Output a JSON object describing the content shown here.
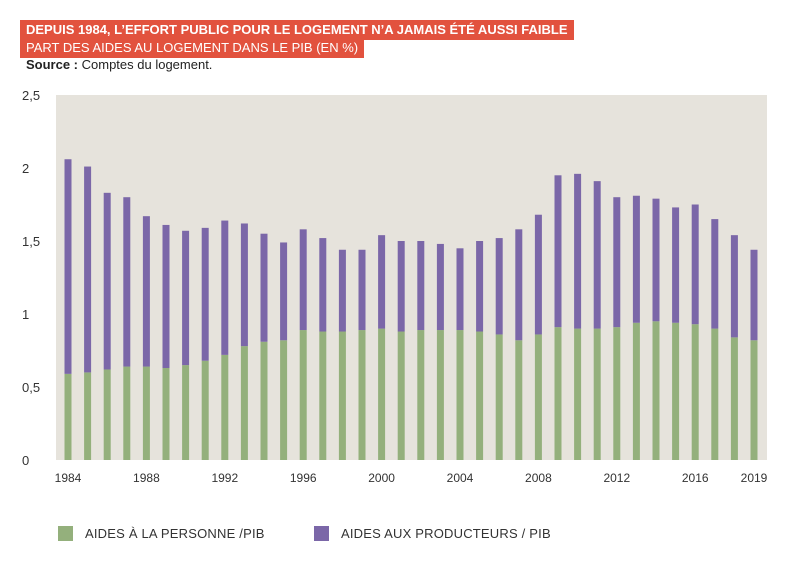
{
  "title": "DEPUIS 1984, L’EFFORT PUBLIC POUR LE LOGEMENT N’A JAMAIS ÉTÉ AUSSI FAIBLE",
  "subtitle": "PART DES AIDES AU LOGEMENT DANS LE PIB (EN %)",
  "source_label": "Source :",
  "source_text": " Comptes du logement.",
  "colors": {
    "series1": "#94b07c",
    "series2": "#7b67a8",
    "plot_bg": "#e6e3dc",
    "title_bg": "#e2523e"
  },
  "chart_data": {
    "type": "bar",
    "stacked": true,
    "categories": [
      1984,
      1985,
      1986,
      1987,
      1988,
      1989,
      1990,
      1991,
      1992,
      1993,
      1994,
      1995,
      1996,
      1997,
      1998,
      1999,
      2000,
      2001,
      2002,
      2003,
      2004,
      2005,
      2006,
      2007,
      2008,
      2009,
      2010,
      2011,
      2012,
      2013,
      2014,
      2015,
      2016,
      2017,
      2018,
      2019
    ],
    "x_tick_labels": [
      "1984",
      "1988",
      "1992",
      "1996",
      "2000",
      "2004",
      "2008",
      "2012",
      "2016",
      "2019"
    ],
    "y_tick_labels": [
      "0",
      "0,5",
      "1",
      "1,5",
      "2",
      "2,5"
    ],
    "ylim": [
      0,
      2.5
    ],
    "series": [
      {
        "name": "AIDES À LA PERSONNE /PIB",
        "values": [
          0.59,
          0.6,
          0.62,
          0.64,
          0.64,
          0.63,
          0.65,
          0.68,
          0.72,
          0.78,
          0.81,
          0.82,
          0.89,
          0.88,
          0.88,
          0.89,
          0.9,
          0.88,
          0.89,
          0.89,
          0.89,
          0.88,
          0.86,
          0.82,
          0.86,
          0.91,
          0.9,
          0.9,
          0.91,
          0.94,
          0.95,
          0.94,
          0.93,
          0.9,
          0.84,
          0.82
        ]
      },
      {
        "name": "AIDES AUX PRODUCTEURS / PIB",
        "values": [
          1.47,
          1.41,
          1.21,
          1.16,
          1.03,
          0.98,
          0.92,
          0.91,
          0.92,
          0.84,
          0.74,
          0.67,
          0.69,
          0.64,
          0.56,
          0.55,
          0.64,
          0.62,
          0.61,
          0.59,
          0.56,
          0.62,
          0.66,
          0.76,
          0.82,
          1.04,
          1.06,
          1.01,
          0.89,
          0.87,
          0.84,
          0.79,
          0.82,
          0.75,
          0.7,
          0.62
        ]
      }
    ],
    "legend_position": "bottom-left",
    "grid": false
  }
}
